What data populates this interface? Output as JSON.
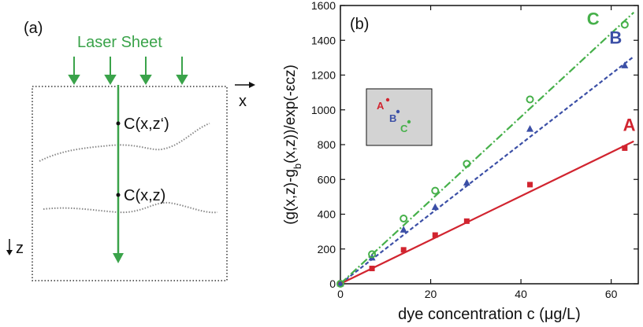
{
  "panel_a": {
    "label": "(a)",
    "laser_label": "Laser Sheet",
    "x_axis_label": "x",
    "z_axis_label": "z",
    "point_upper": "C(x,z‘)",
    "point_lower": "C(x,z)",
    "colors": {
      "laser": "#3aa34a",
      "frame": "#333333",
      "interface": "#888888"
    }
  },
  "panel_b": {
    "label": "(b)",
    "inset": {
      "points": [
        {
          "label": "A",
          "color": "#d1242f"
        },
        {
          "label": "B",
          "color": "#3b4fa6"
        },
        {
          "label": "C",
          "color": "#46b04a"
        }
      ],
      "background": "#d3d3d3"
    }
  },
  "chart_data": {
    "type": "scatter",
    "title": "",
    "xlabel": "dye concentration c (μg/L)",
    "ylabel": "(g(x,z)-g_b(x,z))/exp(-εcz)",
    "xlim": [
      0,
      66
    ],
    "ylim": [
      0,
      1600
    ],
    "x_ticks": [
      0,
      20,
      40,
      60
    ],
    "y_ticks": [
      0,
      200,
      400,
      600,
      800,
      1000,
      1200,
      1400,
      1600
    ],
    "grid": false,
    "series": [
      {
        "name": "A",
        "color": "#d1242f",
        "marker": "square",
        "line": "solid",
        "fit_slope": 12.6,
        "x": [
          0,
          7,
          14,
          21,
          28,
          42,
          63
        ],
        "y": [
          0,
          88,
          195,
          280,
          360,
          570,
          780
        ]
      },
      {
        "name": "B",
        "color": "#3b4fa6",
        "marker": "triangle",
        "line": "dashed",
        "fit_slope": 20.1,
        "x": [
          0,
          7,
          14,
          21,
          28,
          42,
          63
        ],
        "y": [
          0,
          150,
          310,
          440,
          580,
          890,
          1255
        ]
      },
      {
        "name": "C",
        "color": "#46b04a",
        "marker": "circle",
        "line": "dashdot",
        "fit_slope": 24.0,
        "x": [
          0,
          7,
          14,
          21,
          28,
          42,
          63
        ],
        "y": [
          0,
          170,
          375,
          535,
          690,
          1060,
          1490
        ]
      }
    ]
  }
}
